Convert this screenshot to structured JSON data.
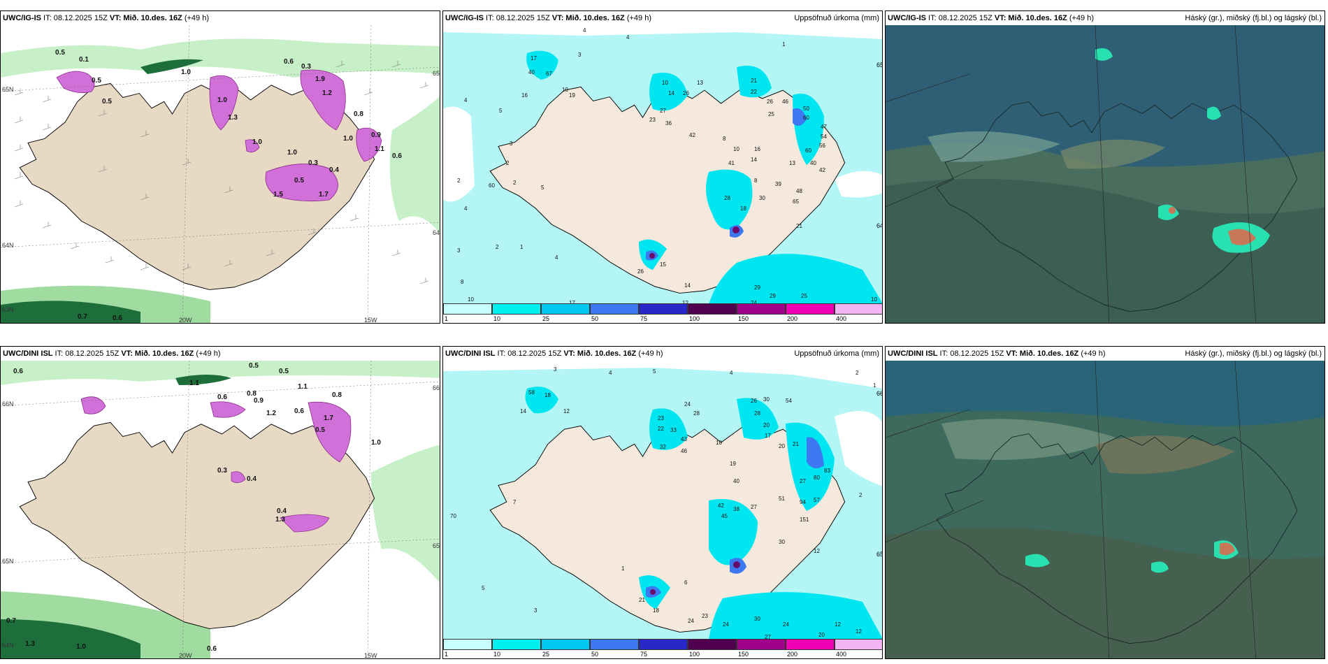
{
  "panels": [
    {
      "id": "top-left",
      "model": "UWC/IG-IS",
      "init": " IT: 08.12.2025 15Z ",
      "vt_label": "VT: Mið. 10.des. 16Z",
      "lead": " (+49 h)",
      "right_title": "",
      "lat_labels": [
        "65N",
        "64N",
        "63N",
        "65N",
        "64N"
      ],
      "lon_labels": [
        "20W",
        "15W"
      ],
      "values": [
        "0.5",
        "0.1",
        "0.5",
        "1.0",
        "0.6",
        "0.3",
        "1.0",
        "1.9",
        "1.2",
        "1.3",
        "1.0",
        "0.3",
        "1.5",
        "0.4",
        "1.0",
        "0.9",
        "1.1",
        "0.5",
        "1.7",
        "1.0",
        "0.6",
        "0.8",
        "0.5",
        "0.7",
        "0.6"
      ]
    },
    {
      "id": "top-middle",
      "model": "UWC/IG-IS",
      "init": " IT: 08.12.2025 15Z ",
      "vt_label": "VT: Mið. 10.des. 16Z",
      "lead": " (+49 h)",
      "right_title": "Uppsöfnuð úrkoma (mm)",
      "lat_labels": [
        "65N",
        "64N"
      ],
      "values": [
        "4",
        "3",
        "4",
        "1",
        "17",
        "40",
        "67",
        "10",
        "19",
        "4",
        "16",
        "5",
        "27",
        "10",
        "14",
        "13",
        "23",
        "26",
        "21",
        "22",
        "36",
        "42",
        "8",
        "10",
        "25",
        "26",
        "46",
        "50",
        "60",
        "47",
        "54",
        "56",
        "60",
        "40",
        "42",
        "41",
        "13",
        "8",
        "14",
        "16",
        "39",
        "48",
        "65",
        "30",
        "28",
        "18",
        "21",
        "2",
        "60",
        "2",
        "4",
        "5",
        "1",
        "2",
        "3",
        "4",
        "15",
        "26",
        "14",
        "29",
        "29",
        "25",
        "17",
        "24",
        "12",
        "10",
        "8",
        "10",
        "3",
        "2"
      ]
    },
    {
      "id": "top-right",
      "model": "UWC/IG-IS",
      "init": " IT: 08.12.2025 15Z ",
      "vt_label": "VT: Mið. 10.des. 16Z",
      "lead": " (+49 h)",
      "right_title": "Háský (gr.), miðský (fj.bl.) og lágský (bl.)"
    },
    {
      "id": "bottom-left",
      "model": "UWC/DINI ISL",
      "init": " IT: 08.12.2025 15Z ",
      "vt_label": "VT: Mið. 10.des. 16Z",
      "lead": " (+49 h)",
      "right_title": "",
      "lat_labels": [
        "66N",
        "65N",
        "64N",
        "66N",
        "65N"
      ],
      "lon_labels": [
        "20W",
        "15W"
      ],
      "values": [
        "0.6",
        "0.5",
        "0.5",
        "1.1",
        "0.6",
        "0.8",
        "0.9",
        "1.1",
        "0.8",
        "1.7",
        "0.6",
        "1.2",
        "0.4",
        "1.3",
        "1.0",
        "0.5",
        "0.4",
        "0.3",
        "0.7",
        "1.3",
        "1.0",
        "0.6"
      ]
    },
    {
      "id": "bottom-middle",
      "model": "UWC/DINI ISL",
      "init": " IT: 08.12.2025 15Z ",
      "vt_label": "VT: Mið. 10.des. 16Z",
      "lead": " (+49 h)",
      "right_title": "Uppsöfnuð úrkoma (mm)",
      "lat_labels": [
        "66N",
        "65N"
      ],
      "values": [
        "3",
        "4",
        "5",
        "4",
        "2",
        "1",
        "58",
        "18",
        "14",
        "12",
        "24",
        "28",
        "26",
        "30",
        "28",
        "54",
        "23",
        "22",
        "33",
        "20",
        "17",
        "32",
        "43",
        "46",
        "10",
        "20",
        "21",
        "19",
        "40",
        "27",
        "80",
        "83",
        "42",
        "45",
        "38",
        "27",
        "51",
        "94",
        "57",
        "151",
        "30",
        "12",
        "70",
        "21",
        "18",
        "24",
        "23",
        "24",
        "30",
        "24",
        "27",
        "20",
        "12",
        "12",
        "1",
        "6",
        "3",
        "5",
        "7",
        "2"
      ]
    },
    {
      "id": "bottom-right",
      "model": "UWC/DINI ISL",
      "init": " IT: 08.12.2025 15Z ",
      "vt_label": "VT: Mið. 10.des. 16Z",
      "lead": " (+49 h)",
      "right_title": "Háský (gr.), miðský (fj.bl.) og lágský (bl.)"
    }
  ],
  "colorbar": {
    "ticks": [
      "1",
      "10",
      "25",
      "50",
      "75",
      "100",
      "150",
      "200",
      "400"
    ],
    "colors": [
      "#c8ffff",
      "#00f0f0",
      "#00c8f0",
      "#3c78f0",
      "#2828c8",
      "#500050",
      "#a0008c",
      "#f000b4",
      "#f5b4f5"
    ]
  },
  "colors": {
    "land": "#e8d9c4",
    "sea_precip_light": "#b4f5f5",
    "snow_pink": "#dc6edc",
    "wind_green": "#a0e6a0",
    "cloud_dark": "#2d5a6e"
  }
}
